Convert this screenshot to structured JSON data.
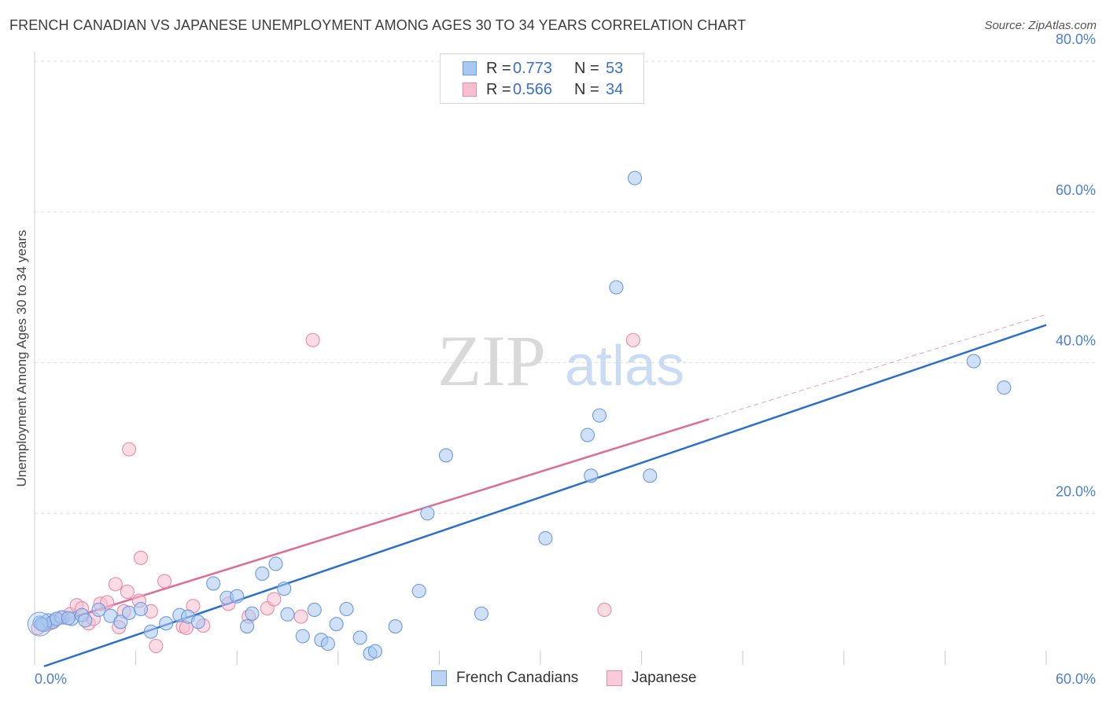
{
  "header": {
    "title": "FRENCH CANADIAN VS JAPANESE UNEMPLOYMENT AMONG AGES 30 TO 34 YEARS CORRELATION CHART",
    "source": "Source: ZipAtlas.com"
  },
  "watermark": {
    "zip": "ZIP",
    "atlas": "atlas"
  },
  "legend": {
    "rows": [
      {
        "r_label": "R =",
        "r_value": "0.773",
        "n_label": "N =",
        "n_value": "53",
        "color": "#a9c8f0",
        "border": "#6a9be0"
      },
      {
        "r_label": "R =",
        "r_value": "0.566",
        "n_label": "N =",
        "n_value": "34",
        "color": "#f7bfd0",
        "border": "#e88aa8"
      }
    ]
  },
  "bottom_legend": {
    "items": [
      "French Canadians",
      "Japanese"
    ]
  },
  "chart_data": {
    "type": "scatter",
    "title": "FRENCH CANADIAN VS JAPANESE UNEMPLOYMENT AMONG AGES 30 TO 34 YEARS CORRELATION CHART",
    "xlabel": "",
    "ylabel": "Unemployment Among Ages 30 to 34 years",
    "xlim": [
      0,
      60
    ],
    "ylim": [
      0,
      80
    ],
    "x_tick_labels": [
      "0.0%",
      "60.0%"
    ],
    "y_ticks": [
      20,
      40,
      60,
      80
    ],
    "y_tick_labels": [
      "20.0%",
      "40.0%",
      "60.0%",
      "80.0%"
    ],
    "grid": true,
    "series": [
      {
        "name": "French Canadians",
        "color": "#6a9be0",
        "fill": "#a9c8f0",
        "trend": {
          "x": [
            0,
            60
          ],
          "y": [
            -0.3,
            45.0
          ]
        },
        "points": [
          [
            0.3,
            5.5
          ],
          [
            0.5,
            5.2
          ],
          [
            0.8,
            5.8
          ],
          [
            1.1,
            5.6
          ],
          [
            1.6,
            6.2
          ],
          [
            2.2,
            6.0
          ],
          [
            2.8,
            6.5
          ],
          [
            3.0,
            5.8
          ],
          [
            3.8,
            7.2
          ],
          [
            4.5,
            6.4
          ],
          [
            5.1,
            5.6
          ],
          [
            5.6,
            6.8
          ],
          [
            6.3,
            7.3
          ],
          [
            6.9,
            4.3
          ],
          [
            7.8,
            5.4
          ],
          [
            8.6,
            6.5
          ],
          [
            9.1,
            6.3
          ],
          [
            9.7,
            5.6
          ],
          [
            10.6,
            10.7
          ],
          [
            11.4,
            8.8
          ],
          [
            12.0,
            9.0
          ],
          [
            12.6,
            5.0
          ],
          [
            12.9,
            6.7
          ],
          [
            13.5,
            12.0
          ],
          [
            14.3,
            13.3
          ],
          [
            14.8,
            10.0
          ],
          [
            15.0,
            6.6
          ],
          [
            15.9,
            3.7
          ],
          [
            16.6,
            7.2
          ],
          [
            17.0,
            3.2
          ],
          [
            17.4,
            2.7
          ],
          [
            17.9,
            5.3
          ],
          [
            18.5,
            7.3
          ],
          [
            19.3,
            3.5
          ],
          [
            19.9,
            1.4
          ],
          [
            20.2,
            1.7
          ],
          [
            21.4,
            5.0
          ],
          [
            22.8,
            9.7
          ],
          [
            23.3,
            20.0
          ],
          [
            24.4,
            27.7
          ],
          [
            26.5,
            6.7
          ],
          [
            30.3,
            16.7
          ],
          [
            32.8,
            30.4
          ],
          [
            33.0,
            25.0
          ],
          [
            33.5,
            33.0
          ],
          [
            34.5,
            50.0
          ],
          [
            35.6,
            64.5
          ],
          [
            36.5,
            25.0
          ],
          [
            55.7,
            40.2
          ],
          [
            57.5,
            36.7
          ],
          [
            0.4,
            5.3
          ],
          [
            1.3,
            6.0
          ],
          [
            2.0,
            6.1
          ]
        ]
      },
      {
        "name": "Japanese",
        "color": "#e88aa8",
        "fill": "#f7bfd0",
        "trend": {
          "x": [
            0,
            40
          ],
          "y": [
            5.0,
            32.5
          ]
        },
        "trend_dashed": {
          "x": [
            40,
            60
          ],
          "y": [
            32.5,
            46.4
          ]
        },
        "points": [
          [
            0.2,
            4.8
          ],
          [
            0.6,
            5.2
          ],
          [
            0.9,
            5.4
          ],
          [
            1.2,
            5.8
          ],
          [
            1.7,
            6.2
          ],
          [
            2.1,
            6.6
          ],
          [
            2.5,
            7.8
          ],
          [
            2.8,
            7.4
          ],
          [
            3.2,
            5.4
          ],
          [
            3.5,
            6.0
          ],
          [
            3.9,
            8.0
          ],
          [
            4.3,
            8.2
          ],
          [
            4.8,
            10.6
          ],
          [
            5.0,
            4.9
          ],
          [
            5.3,
            7.0
          ],
          [
            5.5,
            9.6
          ],
          [
            5.6,
            28.5
          ],
          [
            6.2,
            8.4
          ],
          [
            6.3,
            14.1
          ],
          [
            6.9,
            7.0
          ],
          [
            7.2,
            2.4
          ],
          [
            7.7,
            11.0
          ],
          [
            8.8,
            5.0
          ],
          [
            9.0,
            4.8
          ],
          [
            9.4,
            7.7
          ],
          [
            10.0,
            5.1
          ],
          [
            11.5,
            8.0
          ],
          [
            12.7,
            6.3
          ],
          [
            13.8,
            7.4
          ],
          [
            14.2,
            8.6
          ],
          [
            15.8,
            6.3
          ],
          [
            16.5,
            43.0
          ],
          [
            35.5,
            43.0
          ],
          [
            33.8,
            7.2
          ]
        ]
      }
    ]
  }
}
